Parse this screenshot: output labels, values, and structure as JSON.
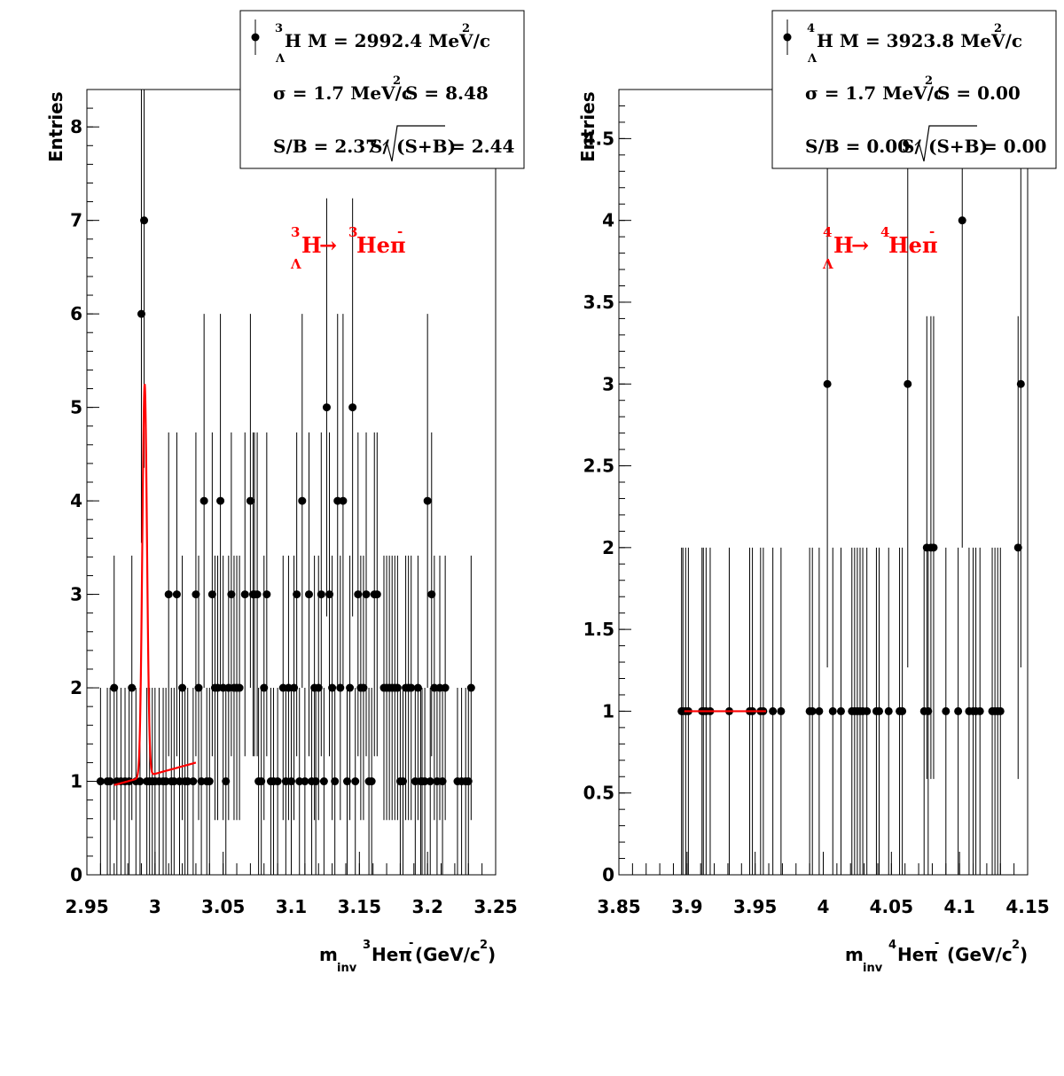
{
  "chart_data": [
    {
      "type": "scatter",
      "xlim": [
        2.95,
        3.25
      ],
      "ylim": [
        0,
        8.4
      ],
      "x_ticks": [
        "2.95",
        "3",
        "3.05",
        "3.1",
        "3.15",
        "3.2",
        "3.25"
      ],
      "y_ticks": [
        "0",
        "1",
        "2",
        "3",
        "4",
        "5",
        "6",
        "7",
        "8"
      ],
      "ylabel": "Entries",
      "xlabel": {
        "m": "m",
        "inv": "inv",
        "iso": "3",
        "body": "Heπ",
        "minus": "-",
        "unit": "(GeV/c",
        "sq": "2",
        "close": ")"
      },
      "stats": {
        "iso": "3",
        "lambda": "Λ",
        "name": "H M = 2992.4 MeV/c",
        "name_sq": "2",
        "sigma": "σ = 1.7 MeV/c",
        "sigma_sq": "2",
        "signal": "S = 8.48",
        "sb": "S/B = 2.37",
        "sig_prefix": "S/",
        "sig_rad": "(S+B)",
        "sig_val": "= 2.44"
      },
      "decay": {
        "iso1": "3",
        "lambda": "Λ",
        "h": "H",
        "arrow": "→",
        "iso2": "3",
        "he": "Heπ",
        "minus": "-"
      },
      "colors": {
        "points": "#000000",
        "fit": "#ff0000"
      },
      "points": [
        [
          2.96,
          1
        ],
        [
          2.965,
          1
        ],
        [
          2.967,
          1
        ],
        [
          2.97,
          2
        ],
        [
          2.972,
          1
        ],
        [
          2.975,
          1
        ],
        [
          2.978,
          1
        ],
        [
          2.981,
          1
        ],
        [
          2.983,
          2
        ],
        [
          2.986,
          1
        ],
        [
          2.989,
          1
        ],
        [
          2.99,
          6
        ],
        [
          2.992,
          7
        ],
        [
          2.994,
          1
        ],
        [
          2.996,
          1
        ],
        [
          2.998,
          1
        ],
        [
          3.0,
          1
        ],
        [
          3.003,
          1
        ],
        [
          3.006,
          1
        ],
        [
          3.008,
          1
        ],
        [
          3.01,
          3
        ],
        [
          3.012,
          1
        ],
        [
          3.014,
          1
        ],
        [
          3.016,
          3
        ],
        [
          3.018,
          1
        ],
        [
          3.02,
          2
        ],
        [
          3.022,
          1
        ],
        [
          3.024,
          1
        ],
        [
          3.028,
          1
        ],
        [
          3.03,
          3
        ],
        [
          3.032,
          2
        ],
        [
          3.034,
          1
        ],
        [
          3.036,
          4
        ],
        [
          3.038,
          1
        ],
        [
          3.04,
          1
        ],
        [
          3.042,
          3
        ],
        [
          3.044,
          2
        ],
        [
          3.046,
          2
        ],
        [
          3.048,
          4
        ],
        [
          3.05,
          2
        ],
        [
          3.052,
          1
        ],
        [
          3.054,
          2
        ],
        [
          3.056,
          3
        ],
        [
          3.058,
          2
        ],
        [
          3.06,
          2
        ],
        [
          3.062,
          2
        ],
        [
          3.066,
          3
        ],
        [
          3.07,
          4
        ],
        [
          3.072,
          3
        ],
        [
          3.073,
          3
        ],
        [
          3.075,
          3
        ],
        [
          3.076,
          1
        ],
        [
          3.078,
          1
        ],
        [
          3.08,
          2
        ],
        [
          3.082,
          3
        ],
        [
          3.085,
          1
        ],
        [
          3.087,
          1
        ],
        [
          3.09,
          1
        ],
        [
          3.094,
          2
        ],
        [
          3.096,
          1
        ],
        [
          3.098,
          2
        ],
        [
          3.1,
          1
        ],
        [
          3.102,
          2
        ],
        [
          3.104,
          3
        ],
        [
          3.106,
          1
        ],
        [
          3.108,
          4
        ],
        [
          3.11,
          1
        ],
        [
          3.113,
          3
        ],
        [
          3.115,
          1
        ],
        [
          3.117,
          2
        ],
        [
          3.118,
          1
        ],
        [
          3.12,
          2
        ],
        [
          3.122,
          3
        ],
        [
          3.124,
          1
        ],
        [
          3.126,
          5
        ],
        [
          3.128,
          3
        ],
        [
          3.13,
          2
        ],
        [
          3.132,
          1
        ],
        [
          3.134,
          4
        ],
        [
          3.136,
          2
        ],
        [
          3.138,
          4
        ],
        [
          3.141,
          1
        ],
        [
          3.143,
          2
        ],
        [
          3.145,
          5
        ],
        [
          3.147,
          1
        ],
        [
          3.149,
          3
        ],
        [
          3.151,
          2
        ],
        [
          3.153,
          2
        ],
        [
          3.155,
          3
        ],
        [
          3.157,
          1
        ],
        [
          3.159,
          1
        ],
        [
          3.161,
          3
        ],
        [
          3.163,
          3
        ],
        [
          3.168,
          2
        ],
        [
          3.17,
          2
        ],
        [
          3.172,
          2
        ],
        [
          3.174,
          2
        ],
        [
          3.176,
          2
        ],
        [
          3.178,
          2
        ],
        [
          3.18,
          1
        ],
        [
          3.182,
          1
        ],
        [
          3.184,
          2
        ],
        [
          3.186,
          2
        ],
        [
          3.188,
          2
        ],
        [
          3.191,
          1
        ],
        [
          3.193,
          2
        ],
        [
          3.195,
          1
        ],
        [
          3.196,
          1
        ],
        [
          3.198,
          1
        ],
        [
          3.2,
          4
        ],
        [
          3.202,
          1
        ],
        [
          3.203,
          3
        ],
        [
          3.205,
          2
        ],
        [
          3.207,
          1
        ],
        [
          3.209,
          2
        ],
        [
          3.211,
          1
        ],
        [
          3.213,
          2
        ],
        [
          3.222,
          1
        ],
        [
          3.225,
          1
        ],
        [
          3.228,
          1
        ],
        [
          3.23,
          1
        ],
        [
          3.232,
          2
        ]
      ],
      "fit": {
        "peak_center": 2.9924,
        "peak_amplitude": 4.2,
        "sigma": 0.0017,
        "bg": [
          [
            2.97,
            0.96
          ],
          [
            3.03,
            1.2
          ]
        ]
      }
    },
    {
      "type": "scatter",
      "xlim": [
        3.85,
        4.15
      ],
      "ylim": [
        0,
        4.8
      ],
      "x_ticks": [
        "3.85",
        "3.9",
        "3.95",
        "4",
        "4.05",
        "4.1",
        "4.15"
      ],
      "y_ticks": [
        "0",
        "0.5",
        "1",
        "1.5",
        "2",
        "2.5",
        "3",
        "3.5",
        "4",
        "4.5"
      ],
      "ylabel": "Entries",
      "xlabel": {
        "m": "m",
        "inv": "inv",
        "iso": "4",
        "body": "Heπ",
        "minus": "-",
        "unit": "(GeV/c",
        "sq": "2",
        "close": ")"
      },
      "stats": {
        "iso": "4",
        "lambda": "Λ",
        "name": "H M = 3923.8 MeV/c",
        "name_sq": "2",
        "sigma": "σ = 1.7 MeV/c",
        "sigma_sq": "2",
        "signal": "S = 0.00",
        "sb": "S/B = 0.00",
        "sig_prefix": "S/",
        "sig_rad": "(S+B)",
        "sig_val": "= 0.00"
      },
      "decay": {
        "iso1": "4",
        "lambda": "Λ",
        "h": "H",
        "arrow": "→",
        "iso2": "4",
        "he": "Heπ",
        "minus": "-"
      },
      "colors": {
        "points": "#000000",
        "fit": "#ff0000"
      },
      "points": [
        [
          3.896,
          1
        ],
        [
          3.897,
          1
        ],
        [
          3.899,
          1
        ],
        [
          3.901,
          1
        ],
        [
          3.911,
          1
        ],
        [
          3.912,
          1
        ],
        [
          3.914,
          1
        ],
        [
          3.917,
          1
        ],
        [
          3.931,
          1
        ],
        [
          3.946,
          1
        ],
        [
          3.948,
          1
        ],
        [
          3.954,
          1
        ],
        [
          3.956,
          1
        ],
        [
          3.963,
          1
        ],
        [
          3.969,
          1
        ],
        [
          3.99,
          1
        ],
        [
          3.992,
          1
        ],
        [
          3.997,
          1
        ],
        [
          4.003,
          3
        ],
        [
          4.007,
          1
        ],
        [
          4.013,
          1
        ],
        [
          4.021,
          1
        ],
        [
          4.023,
          1
        ],
        [
          4.025,
          1
        ],
        [
          4.027,
          1
        ],
        [
          4.029,
          1
        ],
        [
          4.032,
          1
        ],
        [
          4.039,
          1
        ],
        [
          4.041,
          1
        ],
        [
          4.048,
          1
        ],
        [
          4.056,
          1
        ],
        [
          4.058,
          1
        ],
        [
          4.062,
          3
        ],
        [
          4.074,
          1
        ],
        [
          4.076,
          2
        ],
        [
          4.077,
          1
        ],
        [
          4.079,
          2
        ],
        [
          4.081,
          2
        ],
        [
          4.09,
          1
        ],
        [
          4.099,
          1
        ],
        [
          4.102,
          4
        ],
        [
          4.107,
          1
        ],
        [
          4.11,
          1
        ],
        [
          4.112,
          1
        ],
        [
          4.115,
          1
        ],
        [
          4.124,
          1
        ],
        [
          4.126,
          1
        ],
        [
          4.128,
          1
        ],
        [
          4.13,
          1
        ],
        [
          4.143,
          2
        ],
        [
          4.145,
          3
        ]
      ],
      "fit": {
        "peak_center": 3.9238,
        "peak_amplitude": 0,
        "sigma": 0.0017,
        "bg": [
          [
            3.898,
            1.0
          ],
          [
            3.958,
            1.0
          ]
        ]
      }
    }
  ]
}
